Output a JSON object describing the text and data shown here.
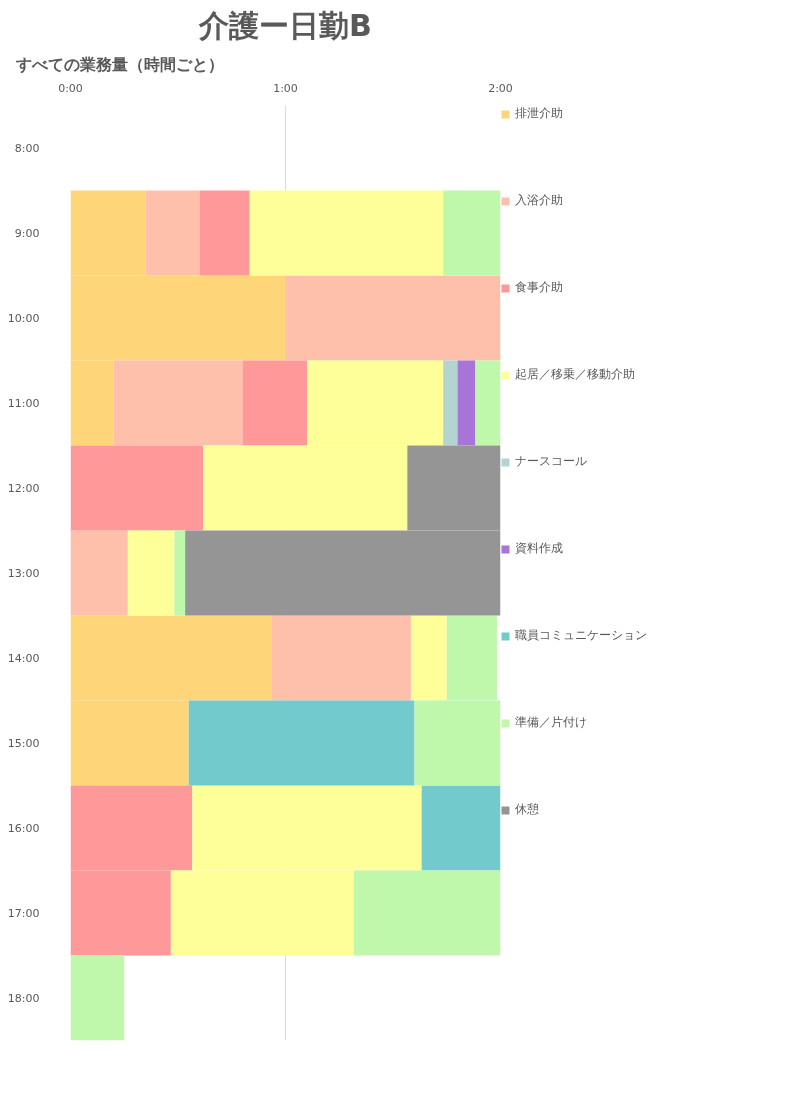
{
  "chart_data": {
    "type": "bar",
    "orientation": "horizontal",
    "stacked": true,
    "title": "介護ー日勤B",
    "subtitle": "すべての業務量（時間ごと）",
    "categories": [
      "8:00",
      "9:00",
      "10:00",
      "11:00",
      "12:00",
      "13:00",
      "14:00",
      "15:00",
      "16:00",
      "17:00",
      "18:00"
    ],
    "series": [
      {
        "name": "排泄介助",
        "color": "#ffd57a",
        "values": [
          null,
          21,
          60,
          12,
          null,
          null,
          56,
          33,
          null,
          null,
          null
        ]
      },
      {
        "name": "入浴介助",
        "color": "#ffc0ab",
        "values": [
          null,
          15,
          60,
          36,
          null,
          16,
          39,
          null,
          null,
          null,
          null
        ]
      },
      {
        "name": "食事介助",
        "color": "#ff9898",
        "values": [
          null,
          14,
          null,
          18,
          37,
          null,
          null,
          null,
          34,
          28,
          null
        ]
      },
      {
        "name": "起居／移乗／移動介助",
        "color": "#ffff99",
        "values": [
          null,
          54,
          null,
          38,
          57,
          13,
          10,
          null,
          64,
          51,
          null
        ]
      },
      {
        "name": "ナースコール",
        "color": "#b4d4d4",
        "values": [
          null,
          null,
          null,
          4,
          null,
          null,
          null,
          null,
          null,
          null,
          null
        ]
      },
      {
        "name": "資料作成",
        "color": "#a874d8",
        "values": [
          null,
          null,
          null,
          5,
          null,
          null,
          null,
          null,
          null,
          null,
          null
        ]
      },
      {
        "name": "職員コミュニケーション",
        "color": "#72cacc",
        "values": [
          null,
          null,
          null,
          null,
          null,
          null,
          null,
          63,
          22,
          null,
          null
        ]
      },
      {
        "name": "準備／片付け",
        "color": "#bff7ab",
        "values": [
          null,
          16,
          null,
          7,
          null,
          3,
          14,
          24,
          null,
          41,
          15
        ]
      },
      {
        "name": "休憩",
        "color": "#959595",
        "values": [
          null,
          null,
          null,
          null,
          26,
          88,
          null,
          null,
          null,
          null,
          null
        ]
      }
    ],
    "xlim": [
      0,
      120
    ],
    "xticks": [
      {
        "value": 0,
        "label": "0:00"
      },
      {
        "value": 60,
        "label": "1:00"
      },
      {
        "value": 120,
        "label": "2:00"
      }
    ],
    "grid": "x",
    "legend": "right"
  }
}
